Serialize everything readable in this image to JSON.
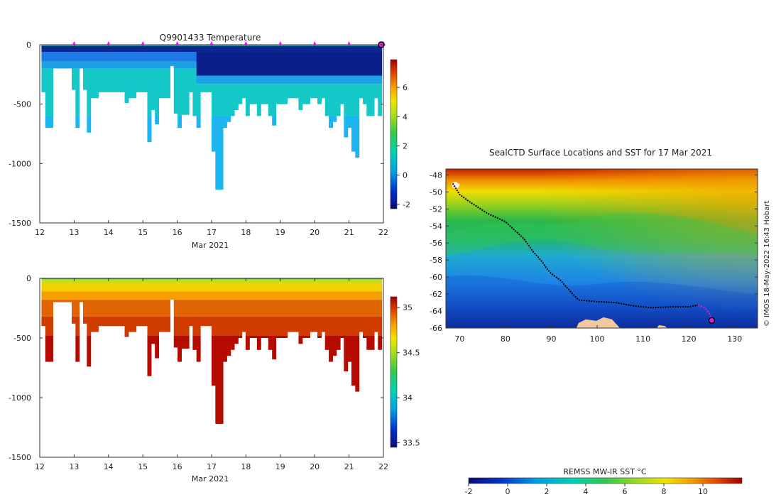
{
  "chart_data": [
    {
      "type": "heatmap",
      "title": "Q9901433  Temperature",
      "xlabel": "Mar 2021",
      "xlim": [
        12,
        22
      ],
      "x_ticks": [
        "12",
        "13",
        "14",
        "15",
        "16",
        "17",
        "18",
        "19",
        "20",
        "21",
        "22"
      ],
      "ylim": [
        -1500,
        0
      ],
      "y_ticks": [
        "0",
        "-500",
        "-1000",
        "-1500"
      ],
      "profile_markers_x": [
        13,
        14,
        15,
        16,
        17,
        18,
        19,
        20,
        21,
        22
      ],
      "colorbar": {
        "min": -2.3,
        "max": 7.9,
        "ticks": [
          "-2",
          "0",
          "2",
          "4",
          "6"
        ]
      },
      "profile_max_depths": [
        400,
        700,
        700,
        200,
        200,
        200,
        200,
        200,
        380,
        700,
        200,
        380,
        740,
        450,
        450,
        400,
        400,
        400,
        400,
        400,
        400,
        400,
        490,
        450,
        450,
        400,
        400,
        400,
        820,
        550,
        670,
        450,
        450,
        450,
        180,
        580,
        700,
        590,
        590,
        400,
        600,
        700,
        400,
        400,
        400,
        900,
        1220,
        1220,
        700,
        650,
        600,
        550,
        500,
        450,
        600,
        500,
        500,
        600,
        500,
        500,
        600,
        680,
        500,
        500,
        500,
        450,
        450,
        450,
        550,
        500,
        500,
        450,
        450,
        500,
        450,
        600,
        700,
        650,
        600,
        500,
        780,
        700,
        900,
        950,
        450,
        500,
        600,
        600,
        450,
        600
      ]
    },
    {
      "type": "heatmap",
      "title": "",
      "xlabel": "Mar 2021",
      "xlim": [
        12,
        22
      ],
      "x_ticks": [
        "12",
        "13",
        "14",
        "15",
        "16",
        "17",
        "18",
        "19",
        "20",
        "21",
        "22"
      ],
      "ylim": [
        -1500,
        0
      ],
      "y_ticks": [
        "0",
        "-500",
        "-1000",
        "-1500"
      ],
      "colorbar": {
        "min": 33.45,
        "max": 35.12,
        "ticks": [
          "33.5",
          "34",
          "34.5",
          "35"
        ]
      },
      "profile_max_depths": [
        400,
        700,
        700,
        200,
        200,
        200,
        200,
        200,
        380,
        700,
        200,
        380,
        740,
        450,
        450,
        400,
        400,
        400,
        400,
        400,
        400,
        400,
        490,
        450,
        450,
        400,
        400,
        400,
        820,
        550,
        670,
        450,
        450,
        450,
        180,
        580,
        700,
        590,
        590,
        400,
        600,
        700,
        400,
        400,
        400,
        900,
        1220,
        1220,
        700,
        650,
        600,
        550,
        500,
        450,
        600,
        500,
        500,
        600,
        500,
        500,
        600,
        680,
        500,
        500,
        500,
        450,
        450,
        450,
        550,
        500,
        500,
        450,
        450,
        500,
        450,
        600,
        700,
        650,
        600,
        500,
        780,
        700,
        900,
        950,
        450,
        500,
        600,
        600,
        450,
        600
      ]
    },
    {
      "type": "heatmap",
      "title": "SealCTD Surface Locations and SST for 17 Mar 2021",
      "xlim": [
        67,
        135
      ],
      "x_ticks": [
        "70",
        "80",
        "90",
        "100",
        "110",
        "120",
        "130"
      ],
      "ylim": [
        -66,
        -47.3
      ],
      "y_ticks": [
        "-48",
        "-50",
        "-52",
        "-54",
        "-56",
        "-58",
        "-60",
        "-62",
        "-64",
        "-66"
      ],
      "colorbar": {
        "label": "REMSS MW-IR SST °C",
        "min": -2,
        "max": 12,
        "ticks": [
          "-2",
          "0",
          "2",
          "4",
          "6",
          "8",
          "10"
        ]
      },
      "track_lon": [
        68.5,
        70,
        72,
        74,
        76,
        78,
        80,
        82,
        84,
        86,
        88,
        89,
        90,
        92,
        94,
        95,
        96,
        98,
        100,
        104,
        108,
        112,
        116,
        120,
        122,
        123.5,
        124.5,
        125
      ],
      "track_lat": [
        -49,
        -50.3,
        -51.1,
        -51.8,
        -52.5,
        -53,
        -53.5,
        -54.5,
        -55.5,
        -57,
        -58.2,
        -59,
        -59.6,
        -60.4,
        -61.6,
        -62.2,
        -62.7,
        -62.8,
        -62.9,
        -63,
        -63.4,
        -63.6,
        -63.5,
        -63.5,
        -63.3,
        -63.6,
        -64.3,
        -65.1
      ],
      "current_position": [
        125,
        -65.1
      ],
      "credit": "© IMOS 18-May-2022 16:43 Hobart"
    }
  ]
}
